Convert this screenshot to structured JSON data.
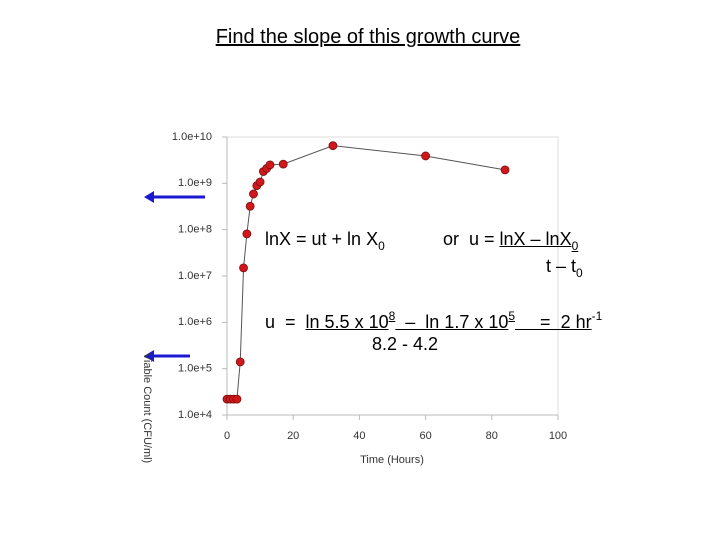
{
  "slide": {
    "title": "Find the slope of this growth curve",
    "equations": [
      [
        {
          "text": "lnX = ut + ln X"
        },
        {
          "text": "0",
          "pos": "sub"
        }
      ],
      [
        {
          "text": "or  u = "
        },
        {
          "text": "lnX – lnX",
          "underline": true
        },
        {
          "text": "0",
          "pos": "sub",
          "underline": true
        }
      ],
      [
        {
          "text": "t – t"
        },
        {
          "text": "0",
          "pos": "sub"
        }
      ],
      [
        {
          "text": "u  =  "
        },
        {
          "text": "ln 5.5 x 10",
          "underline": true
        },
        {
          "text": "8",
          "pos": "sup",
          "underline": true
        },
        {
          "text": "  –  ln 1.7 x 10",
          "underline": true
        },
        {
          "text": "5",
          "pos": "sup",
          "underline": true
        },
        {
          "text": "     =  2 hr",
          "underline": true
        },
        {
          "text": "-1",
          "pos": "sup"
        }
      ],
      [
        {
          "text": "8.2 - 4.2"
        }
      ]
    ]
  },
  "chart_data": {
    "type": "line",
    "markers": true,
    "xlabel": "Time (Hours)",
    "ylabel": "Viable Count (CFU/ml)",
    "x": [
      0,
      1,
      2,
      3,
      4,
      5,
      6,
      7,
      8,
      9,
      10,
      11,
      12,
      13,
      17,
      32,
      60,
      84
    ],
    "series": [
      {
        "color": "#d0181c",
        "line_color": "#555555",
        "values": [
          22000,
          22000,
          22000,
          22000,
          140000,
          15000000,
          81000000,
          320000000,
          590000000,
          890000000,
          1070000000,
          1800000000,
          2100000000,
          2500000000,
          2600000000,
          6500000000,
          3900000000,
          1950000000
        ]
      }
    ],
    "xlim": [
      0,
      100
    ],
    "xticks": [
      0,
      20,
      40,
      60,
      80,
      100
    ],
    "ylim": [
      10000,
      10000000000
    ],
    "yscale": "log",
    "yticks": [
      {
        "value": 10000,
        "label": "1.0e+4"
      },
      {
        "value": 100000,
        "label": "1.0e+5"
      },
      {
        "value": 1000000,
        "label": "1.0e+6"
      },
      {
        "value": 10000000,
        "label": "1.0e+7"
      },
      {
        "value": 100000000,
        "label": "1.0e+8"
      },
      {
        "value": 1000000000,
        "label": "1.0e+9"
      },
      {
        "value": 10000000000,
        "label": "1.0e+10"
      }
    ]
  }
}
